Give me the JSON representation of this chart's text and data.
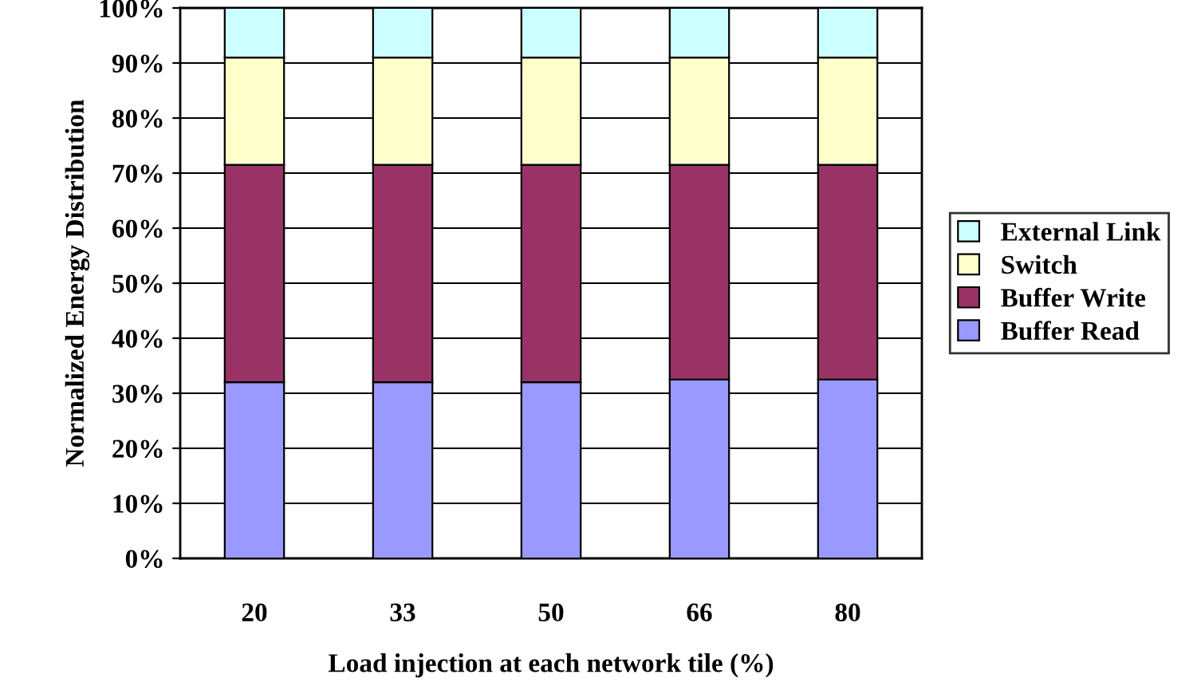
{
  "chart_data": {
    "type": "bar",
    "stacked": true,
    "xlabel": "Load injection at each network tile (%)",
    "ylabel": "Normalized Energy Distribution",
    "categories": [
      "20",
      "33",
      "50",
      "66",
      "80"
    ],
    "series": [
      {
        "name": "Buffer Read",
        "color": "#9999ff",
        "values": [
          32,
          32,
          32,
          32.5,
          32.5
        ]
      },
      {
        "name": "Buffer Write",
        "color": "#993366",
        "values": [
          39.5,
          39.5,
          39.5,
          39,
          39
        ]
      },
      {
        "name": "Switch",
        "color": "#ffffcc",
        "values": [
          19.5,
          19.5,
          19.5,
          19.5,
          19.5
        ]
      },
      {
        "name": "External Link",
        "color": "#ccffff",
        "values": [
          9,
          9,
          9,
          9,
          9
        ]
      }
    ],
    "ylim": [
      0,
      100
    ],
    "yticks": [
      {
        "value": 0,
        "label": "0%"
      },
      {
        "value": 10,
        "label": "10%"
      },
      {
        "value": 20,
        "label": "20%"
      },
      {
        "value": 30,
        "label": "30%"
      },
      {
        "value": 40,
        "label": "40%"
      },
      {
        "value": 50,
        "label": "50%"
      },
      {
        "value": 60,
        "label": "60%"
      },
      {
        "value": 70,
        "label": "70%"
      },
      {
        "value": 80,
        "label": "80%"
      },
      {
        "value": 90,
        "label": "90%"
      },
      {
        "value": 100,
        "label": "100%"
      }
    ],
    "grid": "y",
    "legend": "right"
  }
}
